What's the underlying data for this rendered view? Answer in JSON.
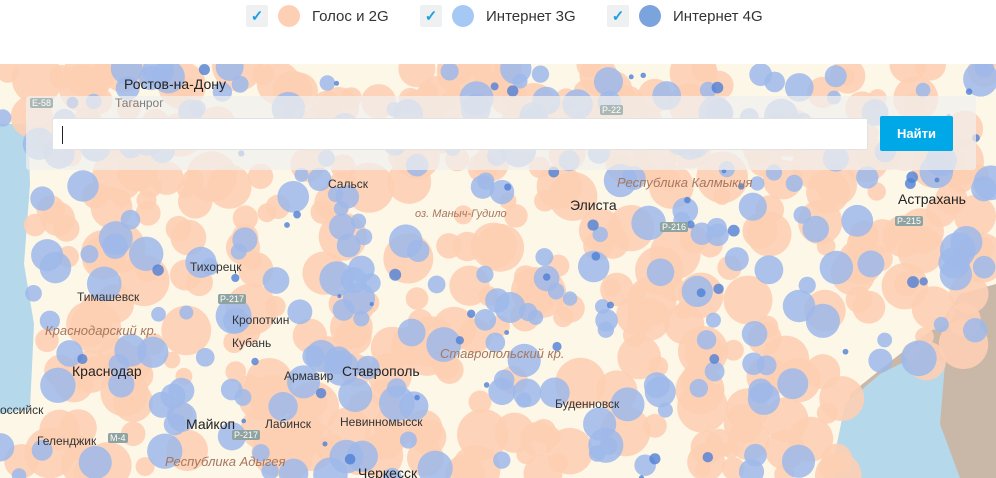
{
  "legend": [
    {
      "label": "Голос и 2G",
      "checked": true,
      "color": "#fdcfb4"
    },
    {
      "label": "Интернет 3G",
      "checked": true,
      "color": "#a6c8f5"
    },
    {
      "label": "Интернет 4G",
      "checked": true,
      "color": "#7ba3dc"
    }
  ],
  "check_icon": "✓",
  "search": {
    "value": "",
    "button_label": "Найти"
  },
  "colors": {
    "land": "#fdf7e8",
    "sea": "#b5d8ea",
    "voice_2g": "#fdcfb4",
    "net_3g": "#9db9ea",
    "net_4g": "#4f7fd6",
    "accent": "#00a8e8"
  },
  "map_labels": {
    "cities": [
      "Ростов-на-Дону",
      "Таганрог",
      "Сальск",
      "Элиста",
      "Астрахань",
      "Тихорецк",
      "Тимашевск",
      "Кропоткин",
      "Кубань",
      "Краснодар",
      "Ставрополь",
      "Армавир",
      "Буденновск",
      "Невинномысск",
      "Лабинск",
      "Майкоп",
      "Геленджик",
      "Черкесск",
      "оссийск"
    ],
    "regions": [
      "Республика Калмыкия",
      "Краснодарский кр.",
      "Ставропольский кр.",
      "Республика Адыгея"
    ],
    "water": [
      "оз. Маныч-Гудило"
    ],
    "roads": [
      "E-58",
      "P-22",
      "P-216",
      "P-217",
      "M-4",
      "P-217",
      "P-215"
    ]
  }
}
